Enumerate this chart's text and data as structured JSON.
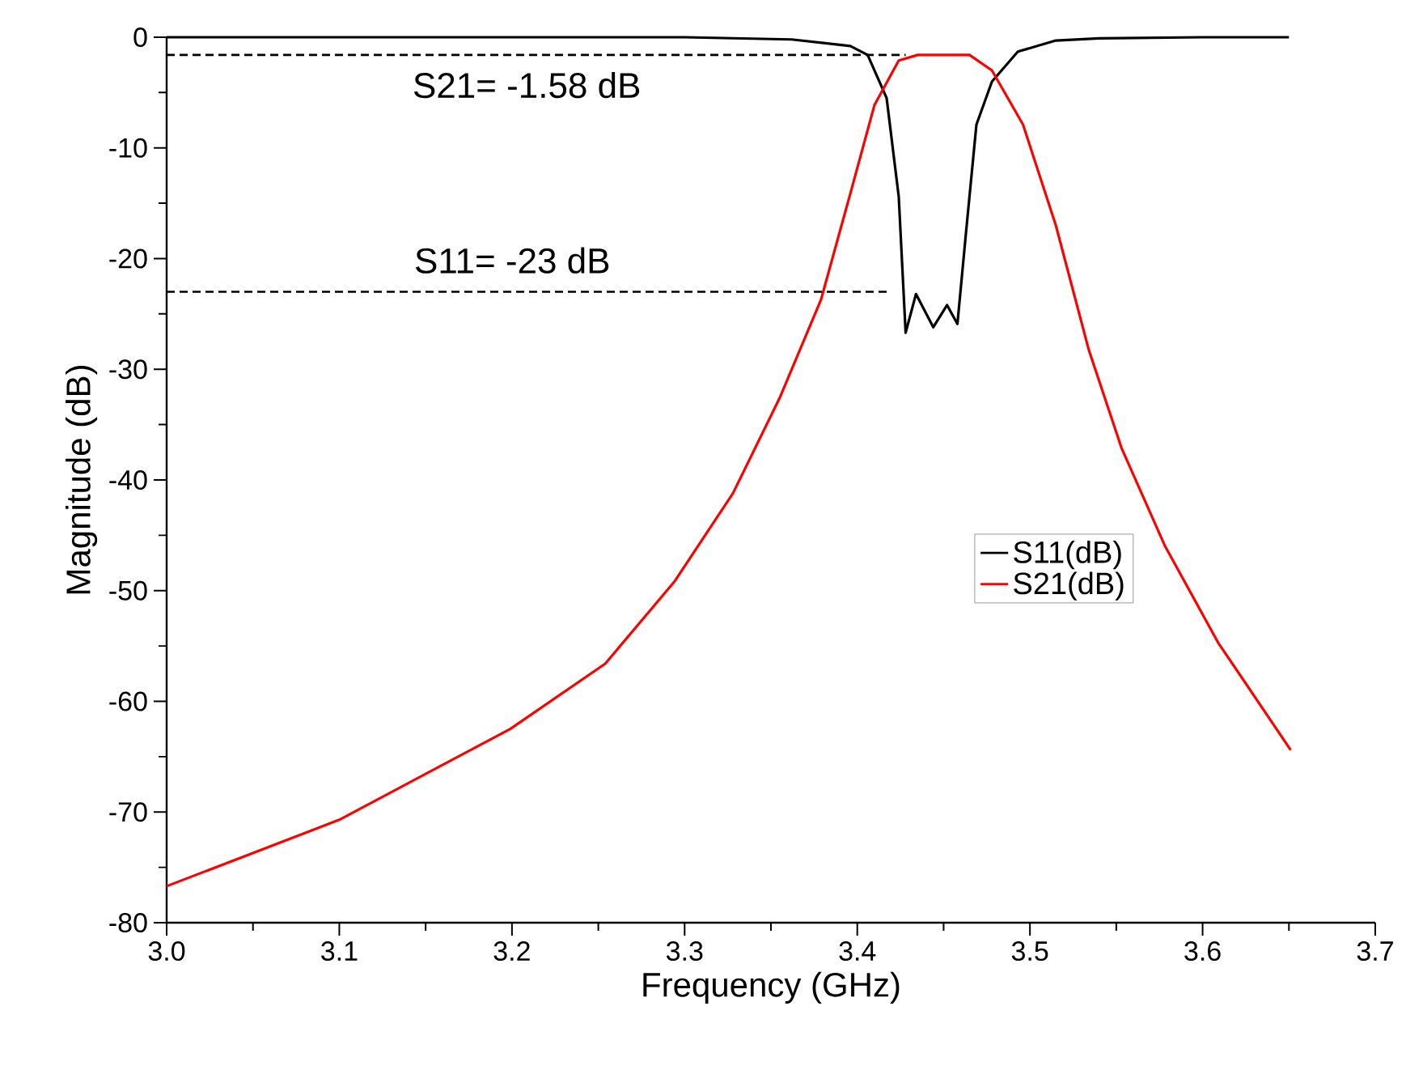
{
  "chart_data": {
    "type": "line",
    "xlabel": "Frequency (GHz)",
    "ylabel": "Magnitude (dB)",
    "xlim": [
      3.0,
      3.7
    ],
    "xticks": [
      {
        "value": 3.0,
        "label": "3.0"
      },
      3.1,
      3.2,
      3.3,
      3.4,
      3.5,
      3.6,
      3.7
    ],
    "ylim": [
      -80,
      0
    ],
    "yticks": [
      -80,
      -70,
      -60,
      -50,
      -40,
      -30,
      -20,
      -10,
      0
    ],
    "grid": false,
    "legend": "center right",
    "marker": "none",
    "line_style": "solid",
    "series": [
      {
        "name": "S11(dB)",
        "color": "#000000",
        "x": [
          3.0,
          3.2,
          3.3,
          3.362,
          3.396,
          3.406,
          3.417,
          3.424,
          3.428,
          3.434,
          3.444,
          3.452,
          3.458,
          3.463,
          3.469,
          3.478,
          3.493,
          3.515,
          3.54,
          3.6,
          3.65
        ],
        "values": [
          0,
          0,
          0,
          -0.2,
          -0.8,
          -1.6,
          -5.5,
          -14.4,
          -26.7,
          -23.2,
          -26.2,
          -24.2,
          -25.9,
          -17.6,
          -7.9,
          -4.0,
          -1.3,
          -0.3,
          -0.1,
          0,
          0
        ]
      },
      {
        "name": "S21(dB)",
        "color": "#ff0000",
        "x": [
          3.0,
          3.1,
          3.199,
          3.254,
          3.294,
          3.328,
          3.355,
          3.379,
          3.396,
          3.41,
          3.424,
          3.435,
          3.45,
          3.465,
          3.478,
          3.496,
          3.515,
          3.534,
          3.553,
          3.578,
          3.609,
          3.651
        ],
        "values": [
          -76.7,
          -70.7,
          -62.5,
          -56.6,
          -49.2,
          -41.2,
          -32.6,
          -23.7,
          -14.1,
          -6.1,
          -2.1,
          -1.6,
          -1.6,
          -1.6,
          -3.0,
          -7.9,
          -17.0,
          -28.2,
          -37.1,
          -45.9,
          -54.7,
          -64.4
        ]
      },
      {
        "type": "line",
        "line_style": "dashed",
        "color": "#000000",
        "x": [
          3.0,
          3.428
        ],
        "values": [
          -1.6,
          -1.6
        ]
      },
      {
        "type": "line",
        "line_style": "dashed",
        "color": "#000000",
        "x": [
          3.0,
          3.419
        ],
        "values": [
          -23,
          -23
        ]
      }
    ],
    "annotations": [
      "S21= -1.58 dB",
      "S11= -23 dB"
    ]
  }
}
